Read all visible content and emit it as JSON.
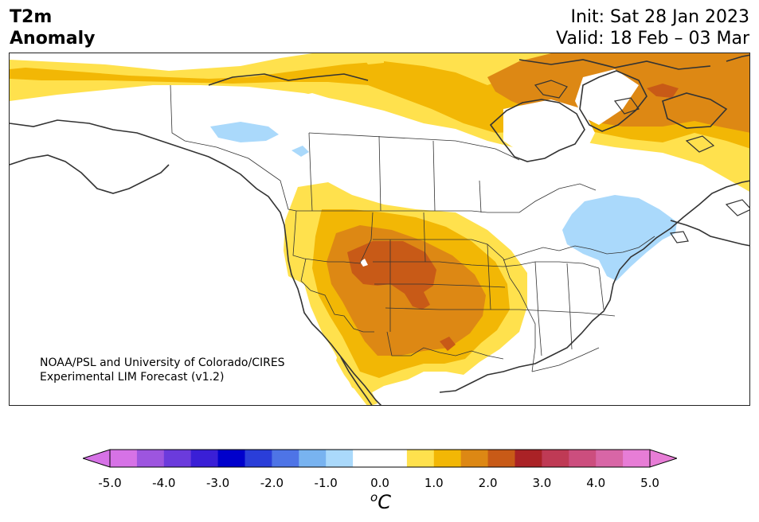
{
  "header": {
    "title_line1": "T2m",
    "title_line2": "Anomaly",
    "init": "Init: Sat 28 Jan 2023",
    "valid": "Valid: 18 Feb – 03 Mar"
  },
  "credit": {
    "line1": "NOAA/PSL and University of Colorado/CIRES",
    "line2": "Experimental LIM Forecast (v1.2)"
  },
  "colorbar": {
    "colors": [
      "#d672e6",
      "#9d55df",
      "#6b3bdc",
      "#3a1fd6",
      "#0000cc",
      "#2a3ed9",
      "#4e74e6",
      "#78b3f0",
      "#aad9fb",
      "#ffffff",
      "#ffffff",
      "#ffe14d",
      "#f2b705",
      "#dd8814",
      "#c85a17",
      "#aa2226",
      "#bf3a55",
      "#cc4e7e",
      "#d866a6",
      "#e77dd6"
    ],
    "ticks": [
      "-5.0",
      "-4.0",
      "-3.0",
      "-2.0",
      "-1.0",
      "0.0",
      "1.0",
      "2.0",
      "3.0",
      "4.0",
      "5.0"
    ],
    "unit": "C",
    "unit_superscript": "o"
  },
  "palette": {
    "light_yellow": "#ffe14d",
    "gold": "#f2b705",
    "orange": "#dd8814",
    "dark_orange": "#c85a17",
    "light_blue": "#aad9fb",
    "coast": "#333333"
  }
}
